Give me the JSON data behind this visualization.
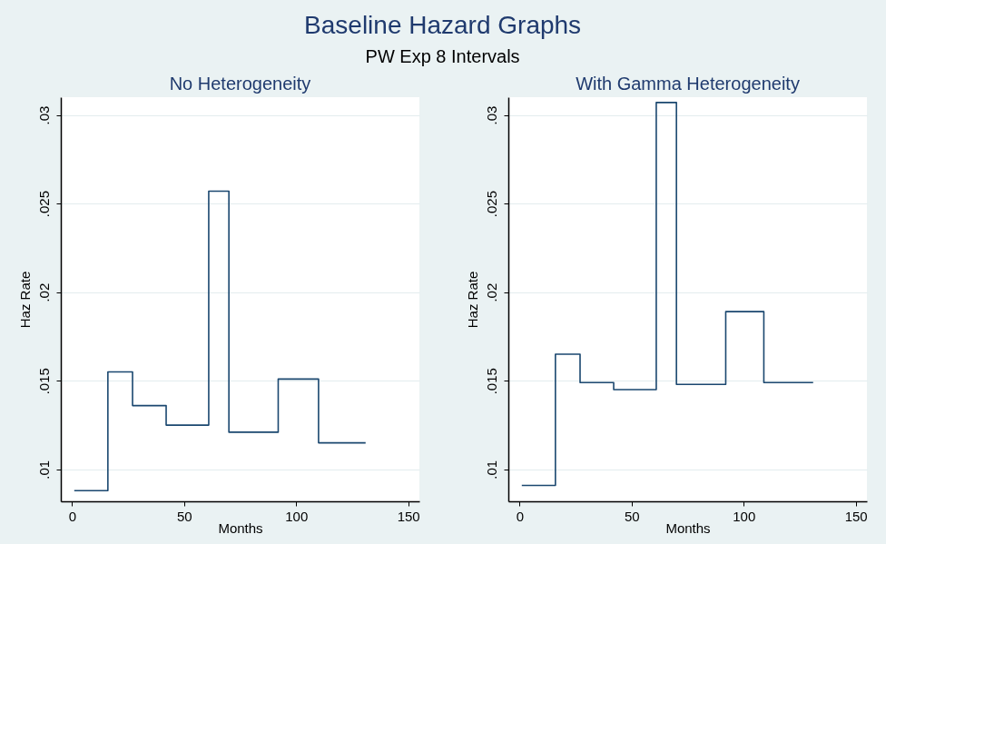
{
  "chart_data": [
    {
      "type": "step",
      "title": "No Heterogeneity",
      "xlabel": "Months",
      "ylabel": "Haz Rate",
      "annotations": [
        "Baseline Hazard Graphs",
        "PW Exp 8 Intervals"
      ],
      "x": [
        1,
        16,
        27,
        42,
        61,
        70,
        92,
        110,
        131
      ],
      "series": [
        {
          "color": "#1a476f",
          "values": [
            0.0088,
            0.0155,
            0.0136,
            0.0125,
            0.0257,
            0.0121,
            0.0151,
            0.0115,
            0.0115
          ]
        }
      ],
      "xlim": [
        -5,
        155
      ],
      "xticks": [
        0,
        50,
        100,
        150
      ],
      "ylim": [
        0.0082,
        0.031
      ],
      "yticks": [
        {
          "value": 0.01,
          "label": ".01"
        },
        {
          "value": 0.015,
          "label": ".015"
        },
        {
          "value": 0.02,
          "label": ".02"
        },
        {
          "value": 0.025,
          "label": ".025"
        },
        {
          "value": 0.03,
          "label": ".03"
        }
      ],
      "grid": "y",
      "line_style": "solid"
    },
    {
      "type": "step",
      "title": "With Gamma Heterogeneity",
      "xlabel": "Months",
      "ylabel": "Haz Rate",
      "x": [
        1,
        16,
        27,
        42,
        61,
        70,
        92,
        109,
        131
      ],
      "series": [
        {
          "color": "#1a476f",
          "values": [
            0.0091,
            0.0165,
            0.0149,
            0.0145,
            0.0307,
            0.0148,
            0.0189,
            0.0149,
            0.0149
          ]
        }
      ],
      "xlim": [
        -5,
        155
      ],
      "xticks": [
        0,
        50,
        100,
        150
      ],
      "ylim": [
        0.0082,
        0.031
      ],
      "yticks": [
        {
          "value": 0.01,
          "label": ".01"
        },
        {
          "value": 0.015,
          "label": ".015"
        },
        {
          "value": 0.02,
          "label": ".02"
        },
        {
          "value": 0.025,
          "label": ".025"
        },
        {
          "value": 0.03,
          "label": ".03"
        }
      ],
      "grid": "y",
      "line_style": "solid"
    }
  ]
}
